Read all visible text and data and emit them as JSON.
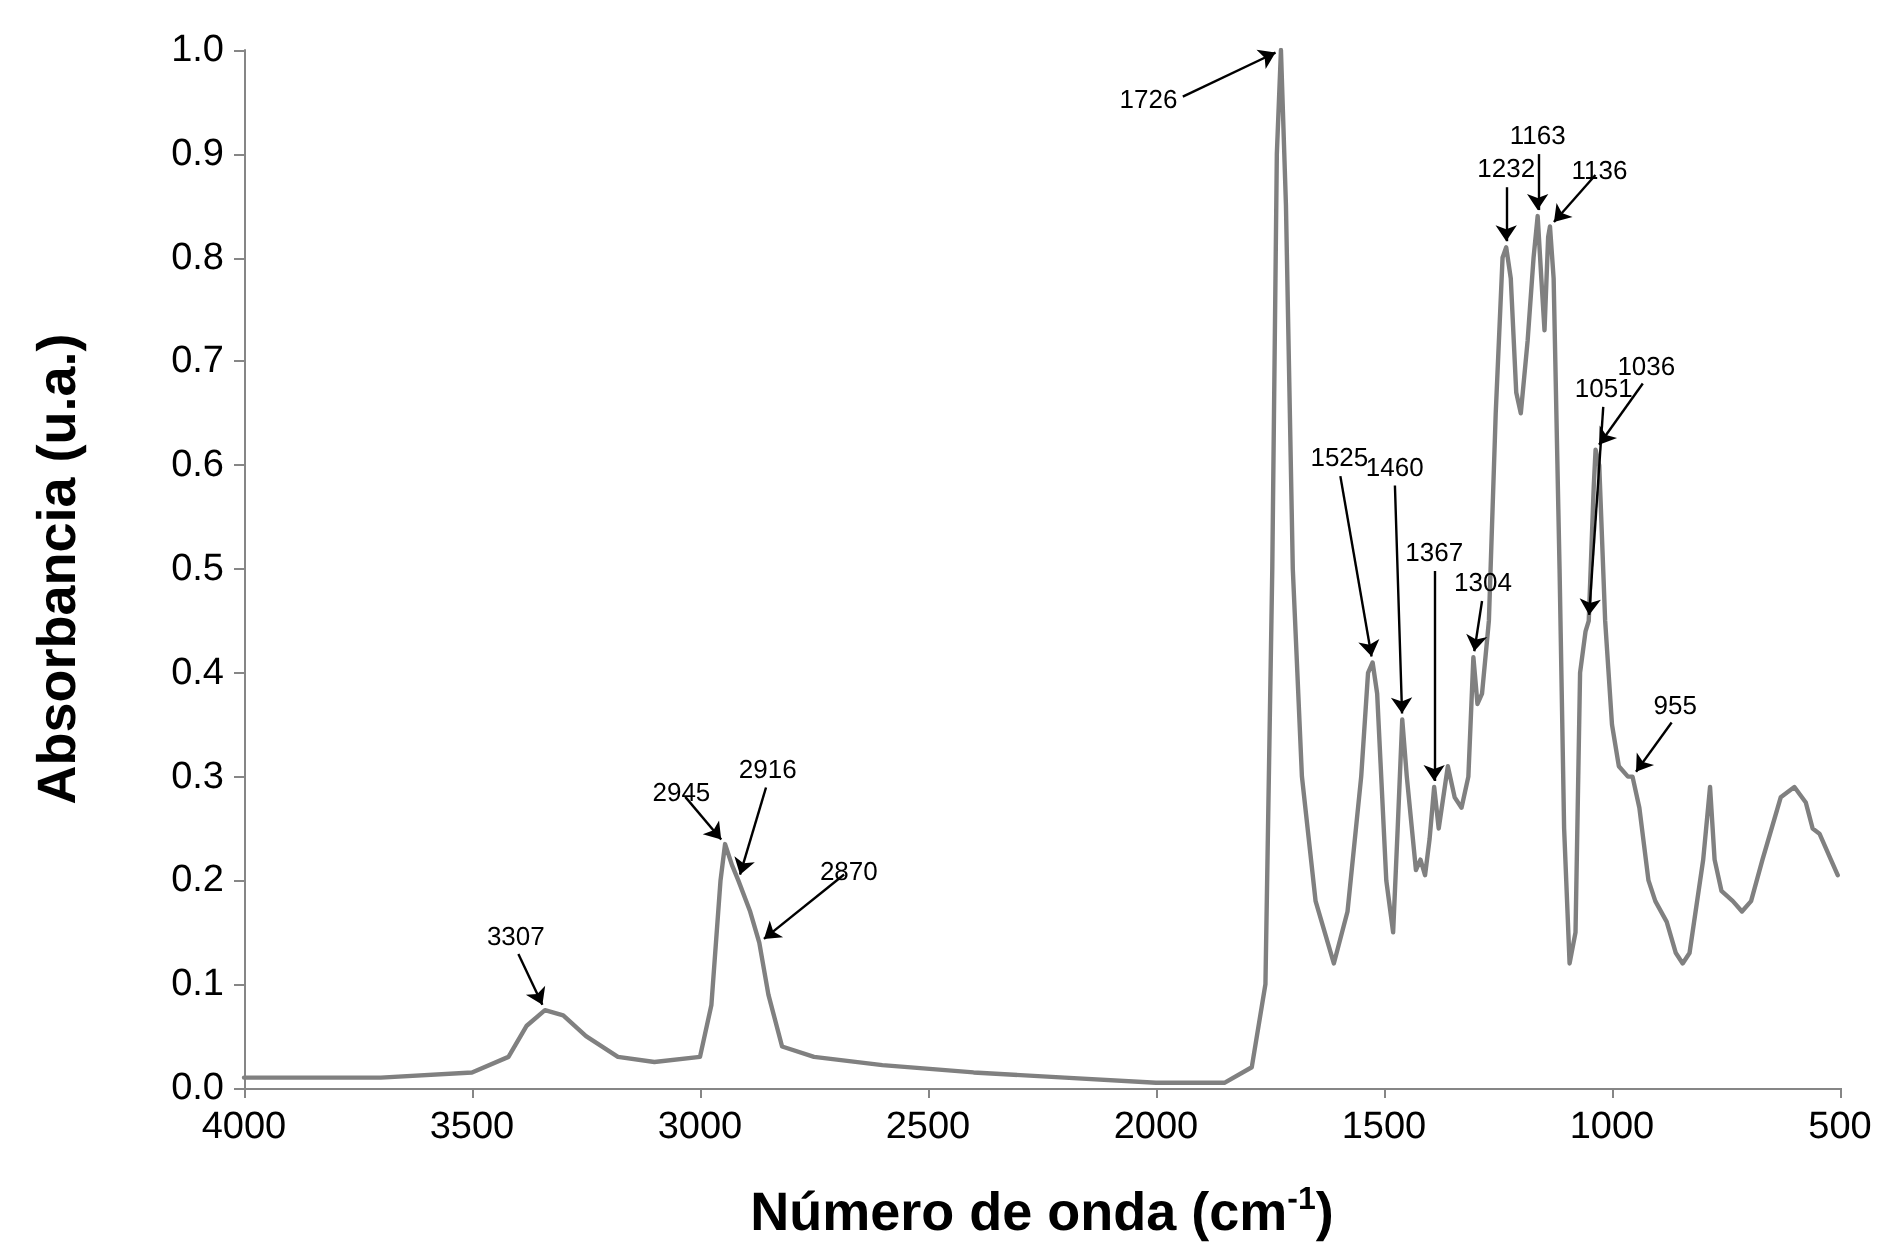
{
  "chart_data": {
    "type": "line",
    "xlabel": "Número de onda (cm$^{-1}$)",
    "ylabel": "Absorbancia (u.a.)",
    "xlim": [
      4000,
      500
    ],
    "xticks": [
      4000,
      3500,
      3000,
      2500,
      2000,
      1500,
      1000,
      500
    ],
    "ylim": [
      0,
      1
    ],
    "yticks": [
      {
        "value": 0,
        "label": "0.0"
      },
      0.1,
      0.2,
      0.3,
      0.4,
      0.5,
      0.6,
      0.7,
      0.8,
      0.9,
      {
        "value": 1,
        "label": "1.0"
      }
    ],
    "grid": false,
    "marker": "none",
    "line_style": "solid",
    "series": [
      {
        "color": "#808080",
        "x": [
          4000,
          3700,
          3500,
          3420,
          3380,
          3340,
          3300,
          3250,
          3180,
          3100,
          3000,
          2975,
          2955,
          2945,
          2930,
          2916,
          2890,
          2870,
          2850,
          2820,
          2750,
          2600,
          2400,
          2200,
          2000,
          1850,
          1790,
          1760,
          1745,
          1735,
          1726,
          1715,
          1700,
          1680,
          1650,
          1610,
          1580,
          1550,
          1535,
          1525,
          1515,
          1495,
          1480,
          1470,
          1460,
          1450,
          1430,
          1420,
          1410,
          1400,
          1390,
          1380,
          1370,
          1360,
          1345,
          1330,
          1315,
          1304,
          1295,
          1285,
          1270,
          1255,
          1240,
          1232,
          1222,
          1210,
          1200,
          1185,
          1172,
          1163,
          1155,
          1148,
          1140,
          1136,
          1128,
          1115,
          1105,
          1093,
          1080,
          1070,
          1058,
          1051,
          1040,
          1036,
          1028,
          1015,
          1000,
          985,
          965,
          955,
          940,
          920,
          905,
          880,
          860,
          845,
          830,
          800,
          785,
          775,
          760,
          735,
          715,
          695,
          670,
          630,
          600,
          575,
          560,
          545,
          520,
          505
        ],
        "values": [
          0.01,
          0.01,
          0.015,
          0.03,
          0.06,
          0.075,
          0.07,
          0.05,
          0.03,
          0.025,
          0.03,
          0.08,
          0.2,
          0.235,
          0.215,
          0.2,
          0.17,
          0.14,
          0.09,
          0.04,
          0.03,
          0.022,
          0.015,
          0.01,
          0.005,
          0.005,
          0.02,
          0.1,
          0.5,
          0.9,
          1.0,
          0.85,
          0.5,
          0.3,
          0.18,
          0.12,
          0.17,
          0.3,
          0.4,
          0.41,
          0.38,
          0.2,
          0.15,
          0.25,
          0.355,
          0.3,
          0.21,
          0.22,
          0.205,
          0.24,
          0.29,
          0.25,
          0.28,
          0.31,
          0.28,
          0.27,
          0.3,
          0.415,
          0.37,
          0.38,
          0.45,
          0.65,
          0.8,
          0.81,
          0.78,
          0.67,
          0.65,
          0.72,
          0.8,
          0.84,
          0.78,
          0.73,
          0.82,
          0.83,
          0.78,
          0.5,
          0.25,
          0.12,
          0.15,
          0.4,
          0.44,
          0.45,
          0.58,
          0.615,
          0.6,
          0.45,
          0.35,
          0.31,
          0.3,
          0.3,
          0.27,
          0.2,
          0.18,
          0.16,
          0.13,
          0.12,
          0.13,
          0.22,
          0.29,
          0.22,
          0.19,
          0.18,
          0.17,
          0.18,
          0.22,
          0.28,
          0.29,
          0.275,
          0.25,
          0.245,
          0.22,
          0.205
        ]
      }
    ],
    "annotations": [
      {
        "text": "3307",
        "x": 3340,
        "y": 0.075
      },
      {
        "text": "2945",
        "x": 2945,
        "y": 0.235
      },
      {
        "text": "2916",
        "x": 2916,
        "y": 0.2
      },
      {
        "text": "2870",
        "x": 2870,
        "y": 0.14
      },
      {
        "text": "1726",
        "x": 1726,
        "y": 1.0
      },
      {
        "text": "1525",
        "x": 1525,
        "y": 0.41
      },
      {
        "text": "1460",
        "x": 1460,
        "y": 0.355
      },
      {
        "text": "1367",
        "x": 1390,
        "y": 0.29
      },
      {
        "text": "1304",
        "x": 1304,
        "y": 0.415
      },
      {
        "text": "1232",
        "x": 1232,
        "y": 0.81
      },
      {
        "text": "1163",
        "x": 1163,
        "y": 0.84
      },
      {
        "text": "1136",
        "x": 1136,
        "y": 0.83
      },
      {
        "text": "1051",
        "x": 1051,
        "y": 0.45
      },
      {
        "text": "1036",
        "x": 1036,
        "y": 0.615
      },
      {
        "text": "955",
        "x": 955,
        "y": 0.3
      }
    ]
  }
}
